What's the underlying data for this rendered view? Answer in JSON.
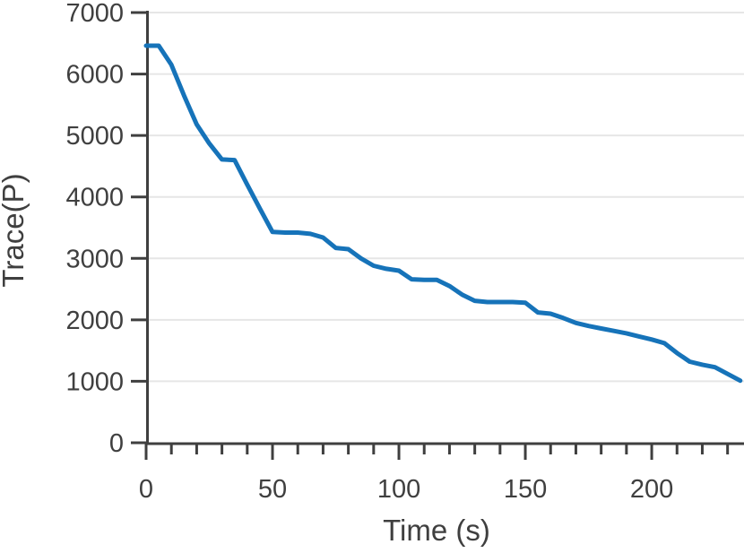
{
  "chart_data": {
    "type": "line",
    "title": "",
    "xlabel": "Time (s)",
    "ylabel": "Trace(P)",
    "xlim": [
      0,
      236.5
    ],
    "ylim": [
      0,
      7000
    ],
    "xticks_major": [
      0,
      50,
      100,
      150,
      200
    ],
    "xtick_minor_step": 10,
    "yticks": [
      0,
      1000,
      2000,
      3000,
      4000,
      5000,
      6000,
      7000
    ],
    "grid": "horizontal-only",
    "legend_position": "none",
    "series": [
      {
        "name": "Trace(P)",
        "x": [
          0,
          5,
          10,
          15,
          20,
          25,
          30,
          35,
          40,
          45,
          50,
          55,
          60,
          65,
          70,
          75,
          80,
          85,
          90,
          95,
          100,
          105,
          110,
          115,
          120,
          125,
          130,
          135,
          140,
          145,
          150,
          155,
          160,
          165,
          170,
          175,
          180,
          185,
          190,
          195,
          200,
          205,
          210,
          215,
          220,
          225,
          230,
          235
        ],
        "y": [
          6460,
          6460,
          6150,
          5650,
          5180,
          4870,
          4610,
          4600,
          4200,
          3810,
          3430,
          3420,
          3420,
          3400,
          3340,
          3170,
          3150,
          3000,
          2880,
          2830,
          2800,
          2660,
          2650,
          2650,
          2550,
          2410,
          2310,
          2290,
          2290,
          2290,
          2280,
          2120,
          2100,
          2030,
          1950,
          1900,
          1860,
          1820,
          1780,
          1730,
          1680,
          1620,
          1460,
          1320,
          1270,
          1230,
          1120,
          1010
        ]
      }
    ]
  },
  "style": {
    "line_color": "#1673b9",
    "axis_color": "#3f3f3f",
    "text_color": "#3f3f3f",
    "grid_color": "#e6e6e6",
    "background_color": "#ffffff"
  }
}
